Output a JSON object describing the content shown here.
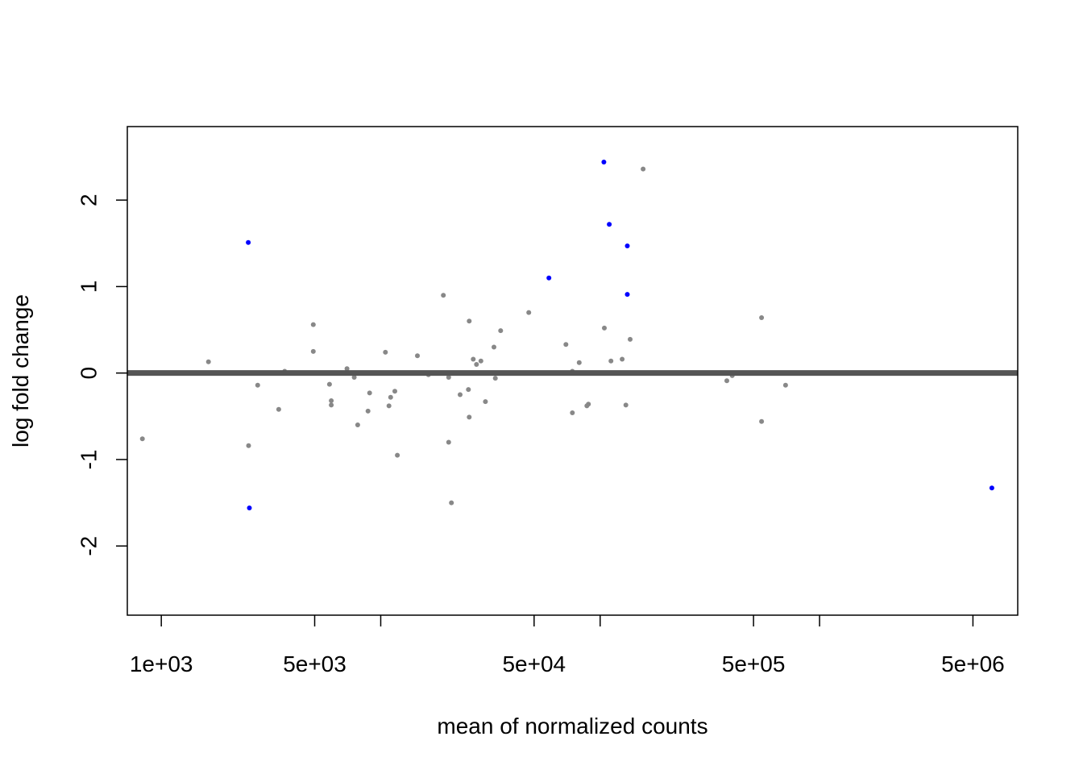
{
  "chart_data": {
    "type": "scatter",
    "title": "",
    "xlabel": "mean of normalized counts",
    "ylabel": "log fold change",
    "x_scale": "log10",
    "xlim": [
      700,
      8000000
    ],
    "ylim": [
      -2.8,
      2.85
    ],
    "x_ticks": [
      1000,
      5000,
      10000,
      50000,
      100000,
      500000,
      1000000,
      5000000
    ],
    "x_tick_labels": [
      "1e+03",
      "5e+03",
      "",
      "5e+04",
      "",
      "5e+05",
      "",
      "5e+06"
    ],
    "y_ticks": [
      -2,
      -1,
      0,
      1,
      2
    ],
    "y_tick_labels": [
      "-2",
      "-1",
      "0",
      "1",
      "2"
    ],
    "reference_line": 0,
    "colors": {
      "significant": "#0000ff",
      "not_significant": "#888888",
      "reference_line": "#555555"
    },
    "series": [
      {
        "name": "",
        "color": "#888888",
        "points": [
          [
            820,
            -0.76
          ],
          [
            1640,
            0.13
          ],
          [
            2500,
            -0.84
          ],
          [
            2750,
            -0.14
          ],
          [
            3430,
            -0.42
          ],
          [
            3650,
            0.02
          ],
          [
            4930,
            0.56
          ],
          [
            4930,
            0.25
          ],
          [
            5840,
            -0.13
          ],
          [
            5950,
            -0.32
          ],
          [
            5950,
            -0.37
          ],
          [
            7020,
            0.05
          ],
          [
            7570,
            -0.05
          ],
          [
            7850,
            -0.6
          ],
          [
            8750,
            -0.44
          ],
          [
            8900,
            -0.23
          ],
          [
            10500,
            0.24
          ],
          [
            10900,
            -0.38
          ],
          [
            11100,
            -0.28
          ],
          [
            11600,
            -0.21
          ],
          [
            11900,
            -0.95
          ],
          [
            14700,
            0.2
          ],
          [
            16500,
            -0.02
          ],
          [
            19300,
            0.9
          ],
          [
            20400,
            -0.05
          ],
          [
            20400,
            -0.8
          ],
          [
            21000,
            -1.5
          ],
          [
            23000,
            -0.25
          ],
          [
            25100,
            -0.19
          ],
          [
            25300,
            -0.51
          ],
          [
            25300,
            0.6
          ],
          [
            26400,
            0.16
          ],
          [
            27300,
            0.1
          ],
          [
            28600,
            0.14
          ],
          [
            30000,
            -0.33
          ],
          [
            32800,
            0.3
          ],
          [
            33300,
            -0.06
          ],
          [
            35200,
            0.49
          ],
          [
            47300,
            0.7
          ],
          [
            69800,
            0.33
          ],
          [
            74700,
            -0.46
          ],
          [
            74700,
            0.02
          ],
          [
            80300,
            0.12
          ],
          [
            87000,
            -0.38
          ],
          [
            88400,
            -0.36
          ],
          [
            104500,
            0.52
          ],
          [
            112000,
            0.14
          ],
          [
            126000,
            0.16
          ],
          [
            131000,
            -0.37
          ],
          [
            137000,
            0.39
          ],
          [
            157000,
            2.36
          ],
          [
            378000,
            -0.09
          ],
          [
            400000,
            -0.03
          ],
          [
            544000,
            0.64
          ],
          [
            544000,
            -0.56
          ],
          [
            700000,
            -0.14
          ]
        ]
      },
      {
        "name": "",
        "color": "#0000ff",
        "points": [
          [
            2490,
            1.51
          ],
          [
            2520,
            -1.56
          ],
          [
            58400,
            1.1
          ],
          [
            104000,
            2.44
          ],
          [
            110000,
            1.72
          ],
          [
            133000,
            1.47
          ],
          [
            133000,
            0.91
          ],
          [
            6100000,
            -1.33
          ]
        ]
      }
    ]
  }
}
